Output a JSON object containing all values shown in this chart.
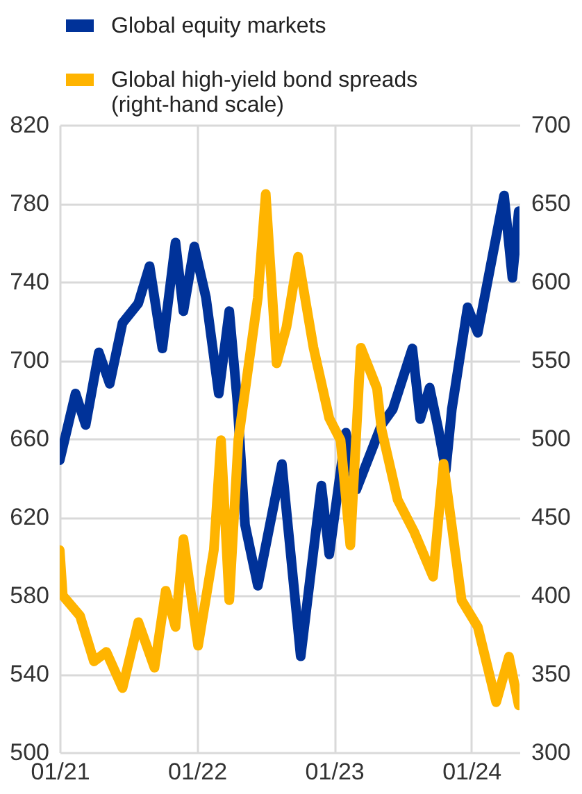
{
  "chart_data": {
    "type": "line",
    "legend": "top left",
    "grid": true,
    "line_style": "solid",
    "xlim": [
      "2021-01-01",
      "2024-05-08"
    ],
    "xticks": [
      {
        "value": "2021-01",
        "label": "01/21"
      },
      {
        "value": "2022-01",
        "label": "01/22"
      },
      {
        "value": "2023-01",
        "label": "01/23"
      },
      {
        "value": "2024-01",
        "label": "01/24"
      }
    ],
    "ylim": [
      500,
      820
    ],
    "yticks": [
      500,
      540,
      580,
      620,
      660,
      700,
      740,
      780,
      820
    ],
    "y2lim": [
      300,
      700
    ],
    "y2ticks": [
      300,
      350,
      400,
      450,
      500,
      550,
      600,
      650,
      700
    ],
    "series": [
      {
        "name": "Global equity markets",
        "color": "#003299",
        "x": [
          "2021-01-01",
          "2021-02-12",
          "2021-03-11",
          "2021-04-15",
          "2021-05-14",
          "2021-06-17",
          "2021-07-29",
          "2021-08-28",
          "2021-10-01",
          "2021-11-05",
          "2021-11-26",
          "2021-12-25",
          "2022-01-25",
          "2022-02-28",
          "2022-03-28",
          "2022-04-18",
          "2022-05-09",
          "2022-06-12",
          "2022-08-15",
          "2022-10-04",
          "2022-11-28",
          "2022-12-19",
          "2023-02-01",
          "2023-03-01",
          "2023-05-07",
          "2023-06-06",
          "2023-07-28",
          "2023-08-18",
          "2023-09-12",
          "2023-10-05",
          "2023-10-25",
          "2023-11-10",
          "2023-12-22",
          "2024-01-18",
          "2024-03-28",
          "2024-04-19",
          "2024-05-06"
        ],
        "values": [
          649,
          683,
          667,
          704,
          688,
          719,
          729,
          748,
          706,
          760,
          725,
          758,
          732,
          683,
          725,
          680,
          616,
          585,
          647,
          549,
          636,
          601,
          663,
          634,
          667,
          675,
          706,
          670,
          686,
          665,
          644,
          675,
          727,
          714,
          784,
          742,
          776
        ]
      },
      {
        "name": "Global high-yield bond spreads (right-hand scale)",
        "color": "#ffb400",
        "axis": "y2",
        "x": [
          "2021-01-01",
          "2021-01-09",
          "2021-02-24",
          "2021-04-02",
          "2021-05-05",
          "2021-06-17",
          "2021-07-29",
          "2021-09-10",
          "2021-10-10",
          "2021-11-05",
          "2021-11-26",
          "2022-01-04",
          "2022-02-15",
          "2022-03-06",
          "2022-03-28",
          "2022-04-21",
          "2022-06-12",
          "2022-07-03",
          "2022-08-01",
          "2022-08-27",
          "2022-09-27",
          "2022-11-07",
          "2022-12-19",
          "2023-01-18",
          "2023-02-13",
          "2023-03-13",
          "2023-04-25",
          "2023-05-07",
          "2023-06-19",
          "2023-08-01",
          "2023-09-21",
          "2023-10-19",
          "2023-12-06",
          "2024-01-18",
          "2024-03-07",
          "2024-04-10",
          "2024-05-06"
        ],
        "values": [
          429,
          400,
          387,
          358,
          364,
          341,
          383,
          354,
          403,
          380,
          436,
          368,
          429,
          499,
          397,
          499,
          590,
          656,
          548,
          571,
          616,
          558,
          513,
          499,
          432,
          558,
          532,
          506,
          461,
          441,
          412,
          484,
          397,
          380,
          332,
          361,
          330
        ]
      }
    ]
  }
}
